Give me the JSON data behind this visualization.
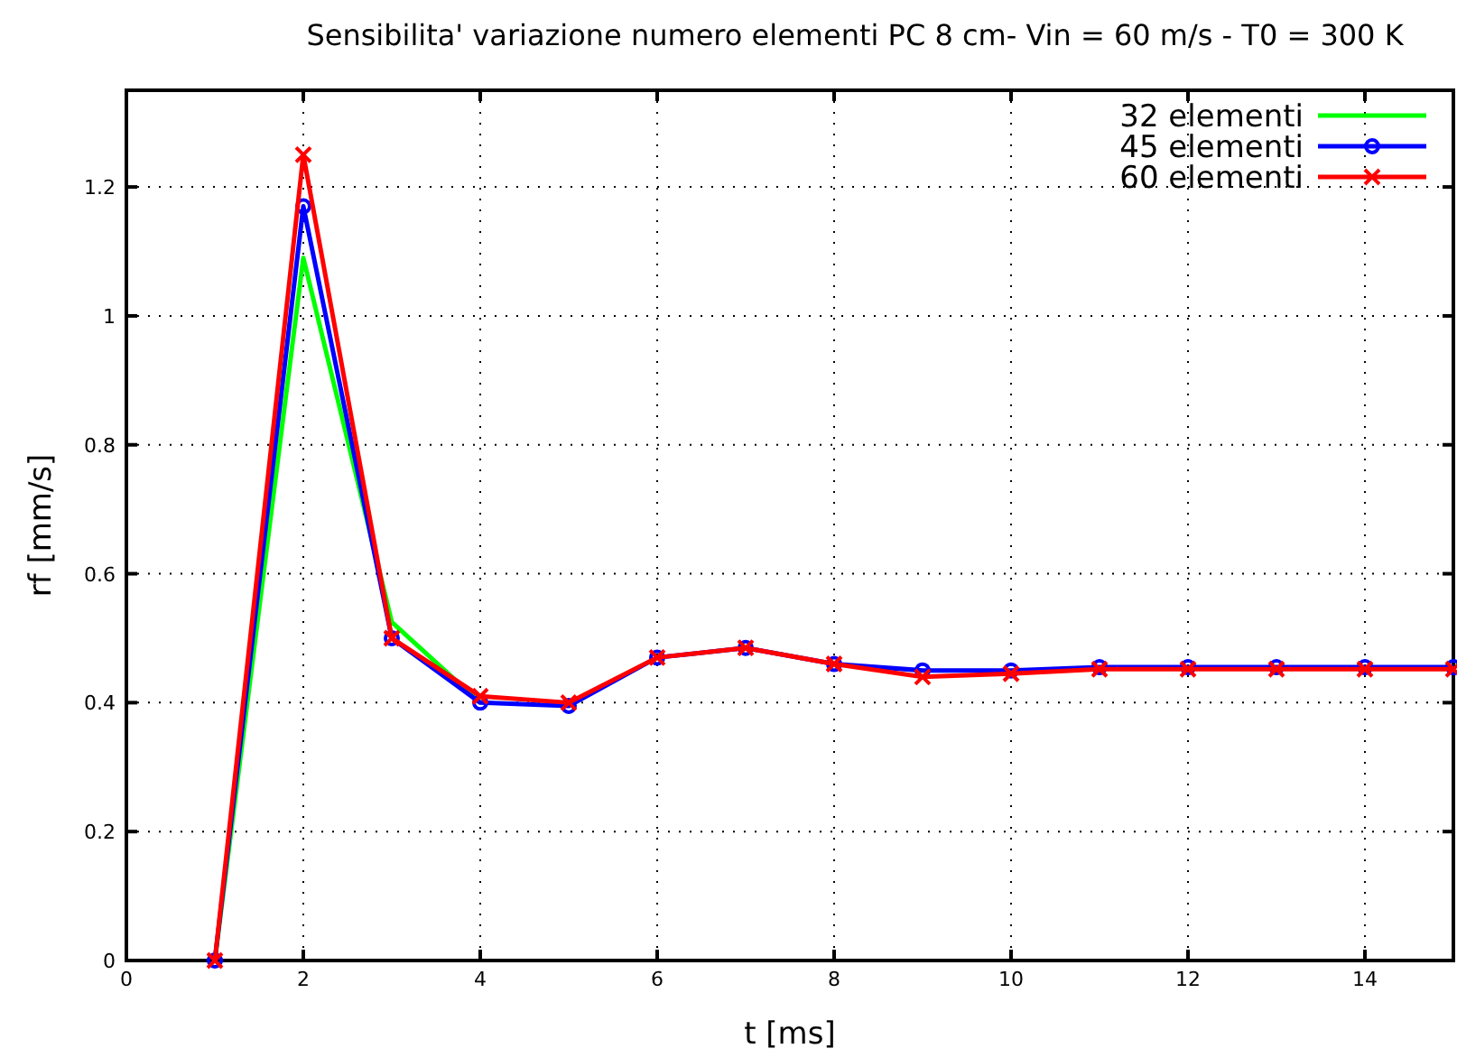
{
  "chart_data": {
    "type": "line",
    "title": "Sensibilita' variazione numero elementi PC 8 cm- Vin = 60 m/s - T0 = 300 K",
    "xlabel": "t [ms]",
    "ylabel": "rf [mm/s]",
    "x": [
      1,
      2,
      3,
      4,
      5,
      6,
      7,
      8,
      9,
      10,
      11,
      12,
      13,
      14,
      15
    ],
    "series": [
      {
        "name": "32 elementi",
        "color": "#00ff00",
        "marker": "none",
        "values": [
          0,
          1.09,
          0.525,
          0.4,
          null,
          null,
          null,
          null,
          null,
          null,
          null,
          null,
          null,
          null,
          null
        ]
      },
      {
        "name": "45 elementi",
        "color": "#0000ff",
        "marker": "circle",
        "values": [
          0,
          1.17,
          0.5,
          0.4,
          0.395,
          0.47,
          0.485,
          0.46,
          0.45,
          0.45,
          0.455,
          0.455,
          0.455,
          0.455,
          0.455
        ]
      },
      {
        "name": "60 elementi",
        "color": "#ff0000",
        "marker": "cross",
        "values": [
          0,
          1.25,
          0.5,
          0.41,
          0.4,
          0.47,
          0.485,
          0.46,
          0.44,
          0.445,
          0.452,
          0.452,
          0.452,
          0.452,
          0.452
        ]
      }
    ],
    "xlim": [
      0,
      15
    ],
    "xticks": [
      0,
      2,
      4,
      6,
      8,
      10,
      12,
      14
    ],
    "ylim": [
      0,
      1.35
    ],
    "yticks": [
      0,
      0.2,
      0.4,
      0.6,
      0.8,
      1,
      1.2
    ],
    "grid": true,
    "legend": "top right",
    "line_style": "solid"
  }
}
